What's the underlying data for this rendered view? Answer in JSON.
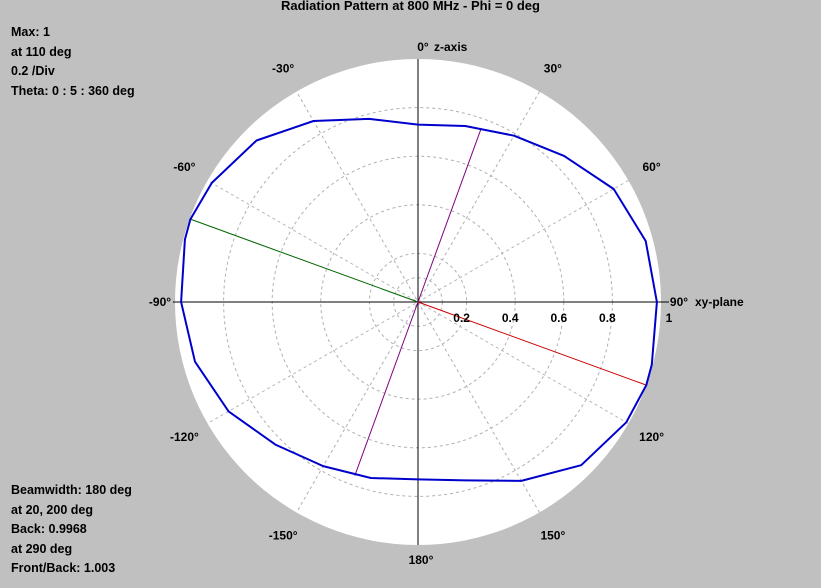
{
  "title": "Radiation Pattern at 800 MHz - Phi = 0 deg",
  "info_top": [
    "Max: 1",
    "at 110 deg",
    "0.2 /Div",
    "Theta: 0 : 5 : 360 deg"
  ],
  "info_bottom": [
    "Beamwidth: 180 deg",
    "at 20, 200 deg",
    "Back: 0.9968",
    "at 290 deg",
    "Front/Back: 1.003"
  ],
  "axis_labels": {
    "top": "z-axis",
    "right": "xy-plane"
  },
  "colors": {
    "background": "#c0c0c0",
    "plot_area": "#ffffff",
    "pattern": "#0000cc",
    "max_line": "#cc0000",
    "back_line": "#006600",
    "beamwidth_lines": "#800080",
    "grid": "#b0b0b0"
  },
  "chart_data": {
    "type": "polar",
    "angle_unit": "deg",
    "angle_zero": "top",
    "angle_direction": "clockwise",
    "angular_ticks": [
      {
        "angle": 0,
        "label": "0°"
      },
      {
        "angle": 30,
        "label": "30°"
      },
      {
        "angle": 60,
        "label": "60°"
      },
      {
        "angle": 90,
        "label": "90°"
      },
      {
        "angle": 120,
        "label": "120°"
      },
      {
        "angle": 150,
        "label": "150°"
      },
      {
        "angle": 180,
        "label": "180°"
      },
      {
        "angle": -150,
        "label": "-150°"
      },
      {
        "angle": -120,
        "label": "-120°"
      },
      {
        "angle": -90,
        "label": "-90°"
      },
      {
        "angle": -60,
        "label": "-60°"
      },
      {
        "angle": -30,
        "label": "-30°"
      }
    ],
    "radial_ticks": [
      {
        "value": 0.2,
        "label": "0.2"
      },
      {
        "value": 0.4,
        "label": "0.4"
      },
      {
        "value": 0.6,
        "label": "0.6"
      },
      {
        "value": 0.8,
        "label": "0.8"
      },
      {
        "value": 1.0,
        "label": "1"
      }
    ],
    "rlim": [
      0,
      1
    ],
    "grid": true,
    "series": [
      {
        "theta": [
          0,
          15,
          30,
          45,
          60,
          75,
          90,
          105,
          110,
          120,
          135,
          150,
          165,
          180,
          195,
          210,
          225,
          240,
          255,
          270,
          285,
          290,
          300,
          315,
          330,
          345
        ],
        "r": [
          0.73,
          0.75,
          0.79,
          0.85,
          0.93,
          0.97,
          0.983,
          0.996,
          1.0,
          0.99,
          0.95,
          0.85,
          0.76,
          0.73,
          0.75,
          0.78,
          0.83,
          0.9,
          0.95,
          0.975,
          0.993,
          0.9968,
          0.98,
          0.94,
          0.86,
          0.78
        ]
      }
    ],
    "markers": [
      {
        "kind": "max",
        "angle": 110,
        "r": 1.0
      },
      {
        "kind": "back",
        "angle": 290,
        "r": 0.9968
      },
      {
        "kind": "beamwidth",
        "angle": 20,
        "r": 0.76
      },
      {
        "kind": "beamwidth",
        "angle": 200,
        "r": 0.76
      }
    ]
  }
}
